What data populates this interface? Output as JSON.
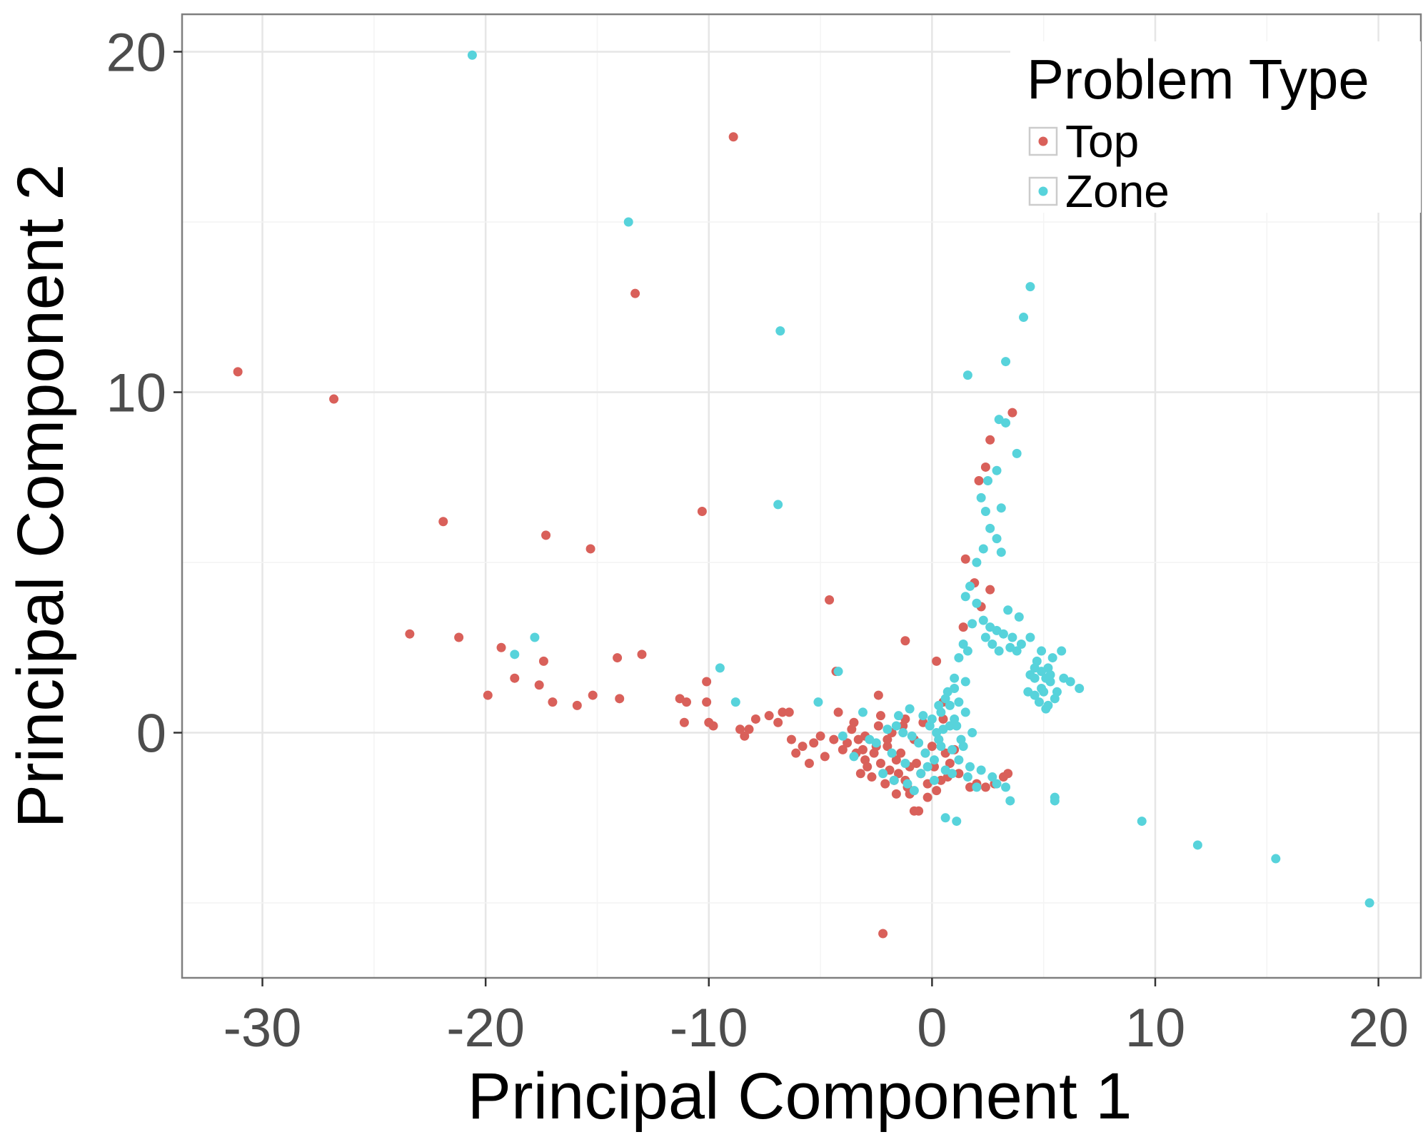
{
  "chart_data": {
    "type": "scatter",
    "xlabel": "Principal Component 1",
    "ylabel": "Principal Component 2",
    "xlim": [
      -33.6,
      21.9
    ],
    "ylim": [
      -7.2,
      21.1
    ],
    "x_ticks": [
      "-30",
      "-20",
      "-10",
      "0",
      "10",
      "20"
    ],
    "y_ticks": [
      "0",
      "10",
      "20"
    ],
    "grid": true,
    "legend": {
      "title": "Problem Type",
      "position": "top-right"
    },
    "series": [
      {
        "name": "Top",
        "color": "#D9605A",
        "points": [
          [
            -31.1,
            10.6
          ],
          [
            -26.8,
            9.8
          ],
          [
            -21.9,
            6.2
          ],
          [
            -17.3,
            5.8
          ],
          [
            -15.3,
            5.4
          ],
          [
            -10.3,
            6.5
          ],
          [
            -8.9,
            17.5
          ],
          [
            -13.3,
            12.9
          ],
          [
            -23.4,
            2.9
          ],
          [
            -21.2,
            2.8
          ],
          [
            -19.3,
            2.5
          ],
          [
            -17.4,
            2.1
          ],
          [
            -14.1,
            2.2
          ],
          [
            -13.0,
            2.3
          ],
          [
            -18.7,
            1.6
          ],
          [
            -17.6,
            1.4
          ],
          [
            -19.9,
            1.1
          ],
          [
            -17.0,
            0.9
          ],
          [
            -15.2,
            1.1
          ],
          [
            -15.9,
            0.8
          ],
          [
            -14.0,
            1.0
          ],
          [
            -11.3,
            1.0
          ],
          [
            -11.0,
            0.9
          ],
          [
            -10.1,
            1.5
          ],
          [
            -10.1,
            0.9
          ],
          [
            -11.1,
            0.3
          ],
          [
            -10.0,
            0.3
          ],
          [
            -9.8,
            0.2
          ],
          [
            -8.6,
            0.1
          ],
          [
            -8.2,
            0.1
          ],
          [
            -8.4,
            -0.1
          ],
          [
            -7.9,
            0.4
          ],
          [
            -7.3,
            0.5
          ],
          [
            -6.9,
            0.3
          ],
          [
            -6.7,
            0.6
          ],
          [
            -6.4,
            0.6
          ],
          [
            -6.3,
            -0.2
          ],
          [
            -5.3,
            -0.3
          ],
          [
            -4.6,
            3.9
          ],
          [
            -4.3,
            1.8
          ],
          [
            -4.2,
            0.6
          ],
          [
            -3.5,
            0.3
          ],
          [
            -3.1,
            -0.5
          ],
          [
            -2.4,
            1.1
          ],
          [
            -2.3,
            0.5
          ],
          [
            -1.2,
            2.7
          ],
          [
            0.2,
            2.1
          ],
          [
            -2.2,
            -5.9
          ],
          [
            -0.6,
            -2.3
          ],
          [
            -0.8,
            -2.3
          ],
          [
            -1.6,
            -1.8
          ],
          [
            -1.2,
            -1.4
          ],
          [
            -0.2,
            -1.5
          ],
          [
            0.4,
            -1.4
          ],
          [
            0.8,
            -0.9
          ],
          [
            1.7,
            -1.6
          ],
          [
            2.0,
            -1.5
          ],
          [
            3.2,
            -1.3
          ],
          [
            3.4,
            -1.2
          ],
          [
            2.8,
            -1.5
          ],
          [
            2.6,
            8.6
          ],
          [
            3.6,
            9.4
          ],
          [
            2.4,
            7.8
          ],
          [
            2.1,
            7.4
          ],
          [
            1.5,
            5.1
          ],
          [
            2.6,
            4.2
          ],
          [
            1.9,
            4.4
          ],
          [
            2.2,
            3.7
          ],
          [
            1.4,
            3.1
          ],
          [
            -1.2,
            0.4
          ],
          [
            0.5,
            0.9
          ],
          [
            -2.0,
            -0.2
          ],
          [
            -4.8,
            -0.7
          ],
          [
            -5.8,
            -0.4
          ],
          [
            -3.0,
            -0.8
          ],
          [
            -4.0,
            -0.5
          ],
          [
            -3.4,
            -0.6
          ],
          [
            -3.8,
            -0.3
          ],
          [
            -2.6,
            -0.6
          ],
          [
            -2.9,
            -1.0
          ],
          [
            -2.3,
            -0.9
          ],
          [
            -1.9,
            -1.1
          ],
          [
            -1.6,
            -0.8
          ],
          [
            -1.4,
            -0.6
          ],
          [
            -1.0,
            -1.0
          ],
          [
            -0.7,
            -0.9
          ],
          [
            -0.3,
            -0.6
          ],
          [
            0.0,
            -0.4
          ],
          [
            0.3,
            -0.2
          ],
          [
            0.6,
            -0.6
          ],
          [
            -2.7,
            -1.3
          ],
          [
            -2.1,
            -1.5
          ],
          [
            -1.5,
            -1.2
          ],
          [
            -1.1,
            -1.6
          ],
          [
            -0.5,
            -1.2
          ],
          [
            0.1,
            -1.0
          ],
          [
            0.7,
            -1.3
          ],
          [
            -3.2,
            -1.2
          ],
          [
            -4.4,
            -0.2
          ],
          [
            -5.0,
            -0.1
          ],
          [
            -3.6,
            0.1
          ],
          [
            -2.4,
            0.2
          ],
          [
            -1.8,
            0.0
          ],
          [
            -1.3,
            0.2
          ],
          [
            -0.4,
            0.3
          ],
          [
            0.5,
            0.4
          ],
          [
            -5.5,
            -0.9
          ],
          [
            -6.1,
            -0.6
          ],
          [
            -3.0,
            -0.1
          ],
          [
            -2.0,
            -0.4
          ],
          [
            -1.7,
            -1.4
          ],
          [
            -1.0,
            -1.8
          ],
          [
            -0.2,
            -1.9
          ],
          [
            0.2,
            -1.7
          ],
          [
            1.0,
            -0.5
          ],
          [
            1.2,
            -1.2
          ],
          [
            2.4,
            -1.6
          ],
          [
            -2.5,
            -0.4
          ],
          [
            -3.3,
            -0.2
          ],
          [
            -0.8,
            -0.2
          ]
        ]
      },
      {
        "name": "Zone",
        "color": "#57D3DB",
        "points": [
          [
            -20.6,
            19.9
          ],
          [
            -13.6,
            15.0
          ],
          [
            -6.8,
            11.8
          ],
          [
            -6.9,
            6.7
          ],
          [
            -17.8,
            2.8
          ],
          [
            -18.7,
            2.3
          ],
          [
            -9.5,
            1.9
          ],
          [
            -4.2,
            1.8
          ],
          [
            -8.8,
            0.9
          ],
          [
            -5.1,
            0.9
          ],
          [
            9.4,
            -2.6
          ],
          [
            11.9,
            -3.3
          ],
          [
            15.4,
            -3.7
          ],
          [
            19.6,
            -5.0
          ],
          [
            0.6,
            -2.5
          ],
          [
            1.1,
            -2.6
          ],
          [
            5.5,
            -1.9
          ],
          [
            5.5,
            -2.0
          ],
          [
            3.5,
            -2.0
          ],
          [
            4.4,
            13.1
          ],
          [
            4.1,
            12.2
          ],
          [
            3.3,
            10.9
          ],
          [
            1.6,
            10.5
          ],
          [
            3.3,
            9.1
          ],
          [
            3.8,
            8.2
          ],
          [
            3.0,
            9.2
          ],
          [
            2.5,
            7.4
          ],
          [
            2.9,
            7.7
          ],
          [
            2.2,
            6.9
          ],
          [
            3.1,
            6.6
          ],
          [
            2.4,
            6.5
          ],
          [
            2.6,
            6.0
          ],
          [
            2.9,
            5.7
          ],
          [
            3.1,
            5.3
          ],
          [
            2.0,
            5.0
          ],
          [
            2.3,
            5.4
          ],
          [
            1.7,
            4.3
          ],
          [
            1.5,
            4.0
          ],
          [
            2.0,
            3.8
          ],
          [
            2.3,
            3.3
          ],
          [
            2.6,
            3.1
          ],
          [
            2.9,
            3.0
          ],
          [
            3.2,
            2.9
          ],
          [
            3.6,
            2.8
          ],
          [
            3.9,
            3.4
          ],
          [
            3.4,
            3.6
          ],
          [
            1.8,
            3.2
          ],
          [
            1.4,
            2.6
          ],
          [
            1.2,
            2.2
          ],
          [
            1.6,
            2.4
          ],
          [
            3.5,
            2.5
          ],
          [
            4.4,
            2.8
          ],
          [
            4.7,
            2.1
          ],
          [
            4.9,
            2.4
          ],
          [
            5.2,
            1.9
          ],
          [
            4.6,
            1.6
          ],
          [
            4.9,
            1.3
          ],
          [
            5.3,
            1.5
          ],
          [
            5.6,
            1.2
          ],
          [
            5.9,
            1.6
          ],
          [
            6.2,
            1.5
          ],
          [
            6.6,
            1.3
          ],
          [
            5.8,
            2.4
          ],
          [
            5.4,
            2.2
          ],
          [
            4.8,
            0.9
          ],
          [
            5.1,
            0.7
          ],
          [
            5.5,
            1.0
          ],
          [
            4.4,
            1.7
          ],
          [
            4.6,
            1.9
          ],
          [
            4.9,
            1.8
          ],
          [
            5.1,
            1.6
          ],
          [
            5.3,
            1.7
          ],
          [
            1.5,
            1.5
          ],
          [
            1.0,
            1.3
          ],
          [
            0.6,
            1.0
          ],
          [
            0.3,
            0.8
          ],
          [
            1.2,
            0.9
          ],
          [
            1.5,
            0.6
          ],
          [
            1.0,
            0.4
          ],
          [
            0.8,
            0.2
          ],
          [
            0.5,
            0.1
          ],
          [
            0.2,
            0.0
          ],
          [
            1.3,
            -0.2
          ],
          [
            0.9,
            -0.5
          ],
          [
            0.4,
            -0.4
          ],
          [
            0.1,
            -0.8
          ],
          [
            -0.3,
            -0.6
          ],
          [
            -0.6,
            -0.3
          ],
          [
            -0.9,
            -0.1
          ],
          [
            -1.3,
            0.0
          ],
          [
            -1.6,
            0.2
          ],
          [
            -2.0,
            0.1
          ],
          [
            -2.5,
            -0.3
          ],
          [
            -1.8,
            -0.6
          ],
          [
            -1.2,
            -0.9
          ],
          [
            -0.5,
            -1.2
          ],
          [
            0.1,
            -1.4
          ],
          [
            0.6,
            -1.1
          ],
          [
            1.2,
            -0.8
          ],
          [
            1.7,
            -1.0
          ],
          [
            2.2,
            -1.1
          ],
          [
            2.7,
            -1.3
          ],
          [
            2.9,
            -1.5
          ],
          [
            3.3,
            -1.6
          ],
          [
            1.0,
            1.6
          ],
          [
            0.7,
            1.2
          ],
          [
            1.8,
            0.0
          ],
          [
            1.4,
            -0.4
          ],
          [
            0.3,
            -0.2
          ],
          [
            -0.1,
            0.2
          ],
          [
            -3.5,
            -0.7
          ],
          [
            -2.8,
            -0.2
          ],
          [
            -4.0,
            -0.1
          ],
          [
            -3.1,
            0.6
          ],
          [
            -1.5,
            0.5
          ],
          [
            -1.0,
            0.7
          ],
          [
            -0.4,
            0.5
          ],
          [
            0.0,
            0.4
          ],
          [
            0.4,
            0.6
          ],
          [
            0.8,
            0.8
          ],
          [
            1.1,
            0.2
          ],
          [
            1.6,
            -1.3
          ],
          [
            2.0,
            -1.6
          ],
          [
            -1.1,
            -1.5
          ],
          [
            -0.8,
            -1.7
          ],
          [
            -2.2,
            -1.2
          ],
          [
            -1.7,
            -1.4
          ],
          [
            -0.2,
            -1.0
          ],
          [
            0.9,
            -1.2
          ],
          [
            2.4,
            2.8
          ],
          [
            2.7,
            2.6
          ],
          [
            3.0,
            2.4
          ],
          [
            4.0,
            2.6
          ],
          [
            3.8,
            2.4
          ],
          [
            4.3,
            1.2
          ],
          [
            4.6,
            1.1
          ],
          [
            5.0,
            1.2
          ],
          [
            5.2,
            0.8
          ]
        ]
      }
    ]
  }
}
